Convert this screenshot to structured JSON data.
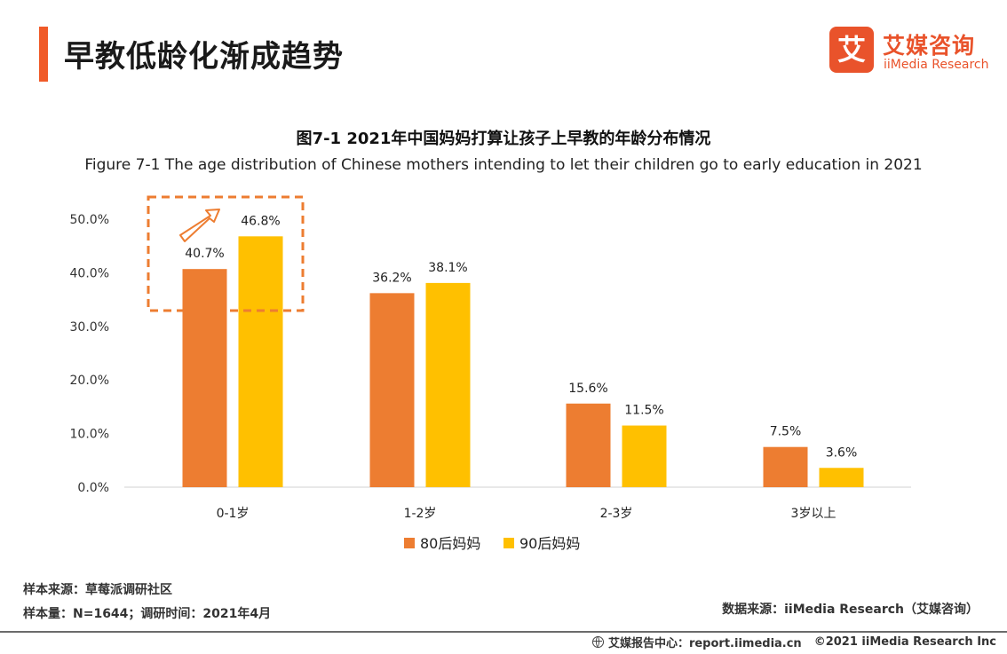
{
  "header": {
    "title": "早教低龄化渐成趋势",
    "accent_color": "#F05A28"
  },
  "logo": {
    "glyph": "艾",
    "name_cn": "艾媒咨询",
    "name_en": "iiMedia Research",
    "color": "#E9532B"
  },
  "chart_data": {
    "type": "bar",
    "title": "图7-1 2021年中国妈妈打算让孩子上早教的年龄分布情况",
    "subtitle": "Figure 7-1 The age distribution of Chinese mothers intending to let their children go to early education in 2021",
    "categories": [
      "0-1岁",
      "1-2岁",
      "2-3岁",
      "3岁以上"
    ],
    "series": [
      {
        "name": "80后妈妈",
        "values": [
          40.7,
          36.2,
          15.6,
          7.5
        ],
        "labels": [
          "40.7%",
          "36.2%",
          "15.6%",
          "7.5%"
        ],
        "color": "#ED7D31"
      },
      {
        "name": "90后妈妈",
        "values": [
          46.8,
          38.1,
          11.5,
          3.6
        ],
        "labels": [
          "46.8%",
          "38.1%",
          "11.5%",
          "3.6%"
        ],
        "color": "#FFC000"
      }
    ],
    "ylim": [
      0,
      50
    ],
    "yticks": [
      "0.0%",
      "10.0%",
      "20.0%",
      "30.0%",
      "40.0%",
      "50.0%"
    ],
    "grid": false,
    "legend": "bottom-center",
    "highlight": {
      "category": "0-1岁",
      "style": "dashed box with up-right arrow",
      "color": "#ED7D31"
    }
  },
  "footer": {
    "sample_source": "样本来源：草莓派调研社区",
    "sample_size": "样本量：N=1644；调研时间：2021年4月",
    "data_source": "数据来源：iiMedia Research（艾媒咨询）",
    "site": "艾媒报告中心：report.iimedia.cn",
    "copyright": "©2021  iiMedia Research  Inc"
  }
}
